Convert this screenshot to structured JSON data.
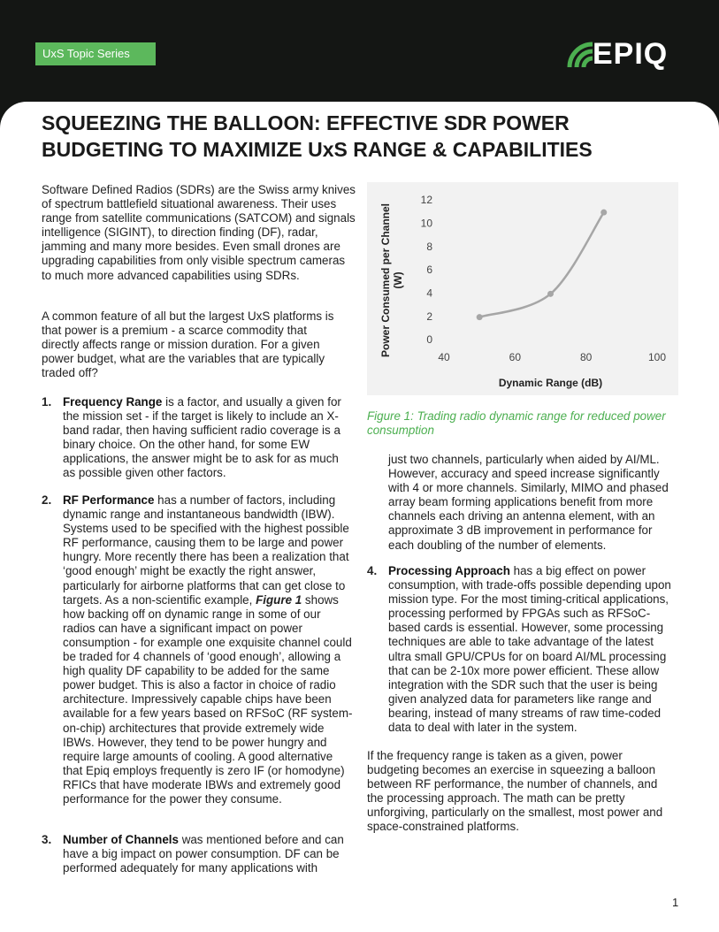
{
  "header": {
    "badge": "UxS Topic Series",
    "logo": "EPIQ"
  },
  "title": "SQUEEZING THE BALLOON: EFFECTIVE SDR POWER BUDGETING TO MAXIMIZE UxS RANGE & CAPABILITIES",
  "intro": [
    "Software Defined Radios (SDRs) are the Swiss army knives of spectrum battlefield situational awareness. Their uses range from satellite communications (SATCOM) and signals intelligence (SIGINT), to direction finding (DF), radar, jamming and many more besides. Even small drones are upgrading capabilities from only visible spectrum cameras to much more advanced capabilities using SDRs.",
    "A common feature of all but the largest UxS platforms is that power is a premium - a scarce commodity that directly affects range or mission duration. For a given power budget, what are the variables that are typically traded off?"
  ],
  "items": [
    {
      "number": "1.",
      "lead": "Frequency Range",
      "text": "is a factor, and usually a given for the mission set - if the target is likely to include an X-band radar, then having sufficient radio coverage is a binary choice. On the other hand, for some EW applications, the answer might be to ask for as much as possible given other factors."
    },
    {
      "number": "2.",
      "lead": "RF Performance",
      "text": "has a number of factors, including dynamic range and instantaneous bandwidth (IBW). Systems used to be specified with the highest possible RF performance, causing them to be large and power hungry. More recently there has been a realization that ‘good enough’ might be exactly the right answer, particularly for airborne platforms that can get close to targets. As a non-scientific example,",
      "figure_ref": "Figure 1",
      "text_after": "shows how backing off on dynamic range in some of our radios can have a significant impact on power consumption - for example one exquisite channel could be traded for 4 channels of ‘good enough’, allowing a high quality DF capability to be added for the same power budget. This is also a factor in choice of radio architecture. Impressively capable chips have been available for a few years based on RFSoC (RF system-on-chip) architectures that provide extremely wide IBWs. However, they tend to be power hungry and require large amounts of cooling. A good alternative that Epiq employs frequently is zero IF (or homodyne) RFICs that have moderate IBWs and extremely good performance for the power they consume."
    },
    {
      "number": "3.",
      "lead": "Number of Channels",
      "text": "was mentioned before and can have a big impact on power consumption. DF can be performed adequately for many applications with",
      "continued": "just two channels, particularly when aided by AI/ML. However, accuracy and speed increase significantly with 4 or more channels. Similarly, MIMO and phased array beam forming applications benefit from more channels each driving an antenna element, with an approximate 3 dB improvement in performance for each doubling of the number of elements."
    },
    {
      "number": "4.",
      "lead": "Processing Approach",
      "text": "has a big effect on power consumption, with trade-offs possible depending upon mission type. For the most timing-critical applications, processing performed by FPGAs such as RFSoC-based cards is essential. However, some processing techniques are able to take advantage of the latest ultra small GPU/CPUs for on board AI/ML processing that can be 2-10x more power efficient. These allow integration with the SDR such that the user is being given analyzed data for parameters like range and bearing, instead of many streams of raw time-coded data to deal with later in the system."
    }
  ],
  "conclusion": "If the frequency range is taken as a given, power budgeting becomes an exercise in squeezing a balloon between RF performance, the number of channels, and the processing approach. The math can be pretty unforgiving, particularly on the smallest, most power and space-constrained platforms.",
  "figure_caption": "Figure 1: Trading radio dynamic range for reduced power consumption",
  "page_number": "1",
  "chart_data": {
    "type": "line",
    "x_label": "Dynamic Range (dB)",
    "y_label": "Power Consumed per Channel (W)",
    "x": [
      50,
      70,
      85
    ],
    "series": [
      {
        "color": "#a6a6a6",
        "values": [
          2,
          4,
          11
        ]
      }
    ],
    "xlim": [
      40,
      100
    ],
    "xticks": [
      40,
      60,
      80,
      100
    ],
    "ylim": [
      0,
      12
    ],
    "yticks": [
      0,
      2,
      4,
      6,
      8,
      10,
      12
    ]
  }
}
